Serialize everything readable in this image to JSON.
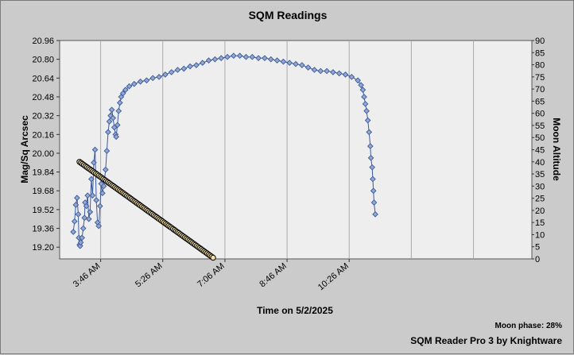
{
  "window": {
    "title": "SQM Readings"
  },
  "footer": {
    "moon_phase": "Moon phase: 28%",
    "brand": "SQM Reader Pro 3 by Knightware"
  },
  "chart_data": {
    "type": "scatter",
    "title": "SQM Readings",
    "xlabel": "Time on 5/2/2025",
    "ylabel": "Mag/Sq Arcsec",
    "y2label": "Moon Altitude",
    "x_tick_labels": [
      "3:46 AM",
      "5:26 AM",
      "7:06 AM",
      "8:46 AM",
      "10:26 AM"
    ],
    "x_ticks_minutes": [
      226,
      326,
      426,
      526,
      626
    ],
    "xlim_minutes": [
      160,
      920
    ],
    "ylim": [
      19.1,
      20.96
    ],
    "y_ticks": [
      "20.96",
      "20.80",
      "20.64",
      "20.48",
      "20.32",
      "20.16",
      "20.00",
      "19.84",
      "19.68",
      "19.52",
      "19.36",
      "19.20"
    ],
    "y2lim": [
      0,
      90
    ],
    "y2_ticks": [
      "90",
      "85",
      "80",
      "75",
      "70",
      "65",
      "60",
      "55",
      "50",
      "45",
      "40",
      "35",
      "30",
      "25",
      "20",
      "15",
      "10",
      "5",
      "0"
    ],
    "grid": true,
    "series": [
      {
        "axis": "left",
        "color": "#3a5a9e",
        "fill": "#93a7cf",
        "points": [
          [
            182,
            19.33
          ],
          [
            184,
            19.42
          ],
          [
            186,
            19.56
          ],
          [
            188,
            19.62
          ],
          [
            190,
            19.48
          ],
          [
            191,
            19.28
          ],
          [
            192,
            19.22
          ],
          [
            193,
            19.21
          ],
          [
            194,
            19.24
          ],
          [
            196,
            19.28
          ],
          [
            198,
            19.36
          ],
          [
            200,
            19.45
          ],
          [
            201,
            19.58
          ],
          [
            203,
            19.55
          ],
          [
            205,
            19.64
          ],
          [
            207,
            19.44
          ],
          [
            209,
            19.5
          ],
          [
            211,
            19.78
          ],
          [
            213,
            19.64
          ],
          [
            215,
            19.92
          ],
          [
            217,
            20.03
          ],
          [
            219,
            19.6
          ],
          [
            221,
            19.41
          ],
          [
            223,
            19.38
          ],
          [
            225,
            19.55
          ],
          [
            227,
            19.74
          ],
          [
            229,
            19.66
          ],
          [
            231,
            19.72
          ],
          [
            234,
            19.86
          ],
          [
            236,
            20.02
          ],
          [
            238,
            20.18
          ],
          [
            240,
            20.27
          ],
          [
            242,
            20.32
          ],
          [
            244,
            20.37
          ],
          [
            246,
            20.3
          ],
          [
            248,
            20.22
          ],
          [
            250,
            20.16
          ],
          [
            251,
            20.14
          ],
          [
            253,
            20.24
          ],
          [
            255,
            20.36
          ],
          [
            257,
            20.43
          ],
          [
            259,
            20.48
          ],
          [
            262,
            20.51
          ],
          [
            266,
            20.54
          ],
          [
            272,
            20.57
          ],
          [
            280,
            20.59
          ],
          [
            290,
            20.61
          ],
          [
            300,
            20.62
          ],
          [
            310,
            20.64
          ],
          [
            320,
            20.65
          ],
          [
            330,
            20.67
          ],
          [
            340,
            20.69
          ],
          [
            350,
            20.71
          ],
          [
            360,
            20.72
          ],
          [
            370,
            20.74
          ],
          [
            380,
            20.75
          ],
          [
            390,
            20.77
          ],
          [
            400,
            20.79
          ],
          [
            410,
            20.8
          ],
          [
            420,
            20.81
          ],
          [
            430,
            20.82
          ],
          [
            440,
            20.83
          ],
          [
            450,
            20.83
          ],
          [
            460,
            20.82
          ],
          [
            470,
            20.82
          ],
          [
            480,
            20.81
          ],
          [
            490,
            20.81
          ],
          [
            500,
            20.8
          ],
          [
            510,
            20.79
          ],
          [
            520,
            20.78
          ],
          [
            530,
            20.77
          ],
          [
            540,
            20.76
          ],
          [
            550,
            20.75
          ],
          [
            560,
            20.73
          ],
          [
            570,
            20.71
          ],
          [
            580,
            20.7
          ],
          [
            590,
            20.7
          ],
          [
            600,
            20.69
          ],
          [
            610,
            20.68
          ],
          [
            620,
            20.67
          ],
          [
            630,
            20.65
          ],
          [
            640,
            20.62
          ],
          [
            645,
            20.58
          ],
          [
            648,
            20.54
          ],
          [
            650,
            20.48
          ],
          [
            652,
            20.42
          ],
          [
            654,
            20.36
          ],
          [
            656,
            20.28
          ],
          [
            658,
            20.18
          ],
          [
            660,
            20.06
          ],
          [
            661,
            19.96
          ],
          [
            663,
            19.88
          ],
          [
            664,
            19.78
          ],
          [
            665,
            19.68
          ],
          [
            666,
            19.58
          ],
          [
            668,
            19.48
          ]
        ]
      },
      {
        "axis": "right",
        "color": "#000000",
        "fill": "#f3dfa6",
        "line": [
          [
            192,
            40
          ],
          [
            407,
            0.5
          ]
        ]
      }
    ]
  }
}
